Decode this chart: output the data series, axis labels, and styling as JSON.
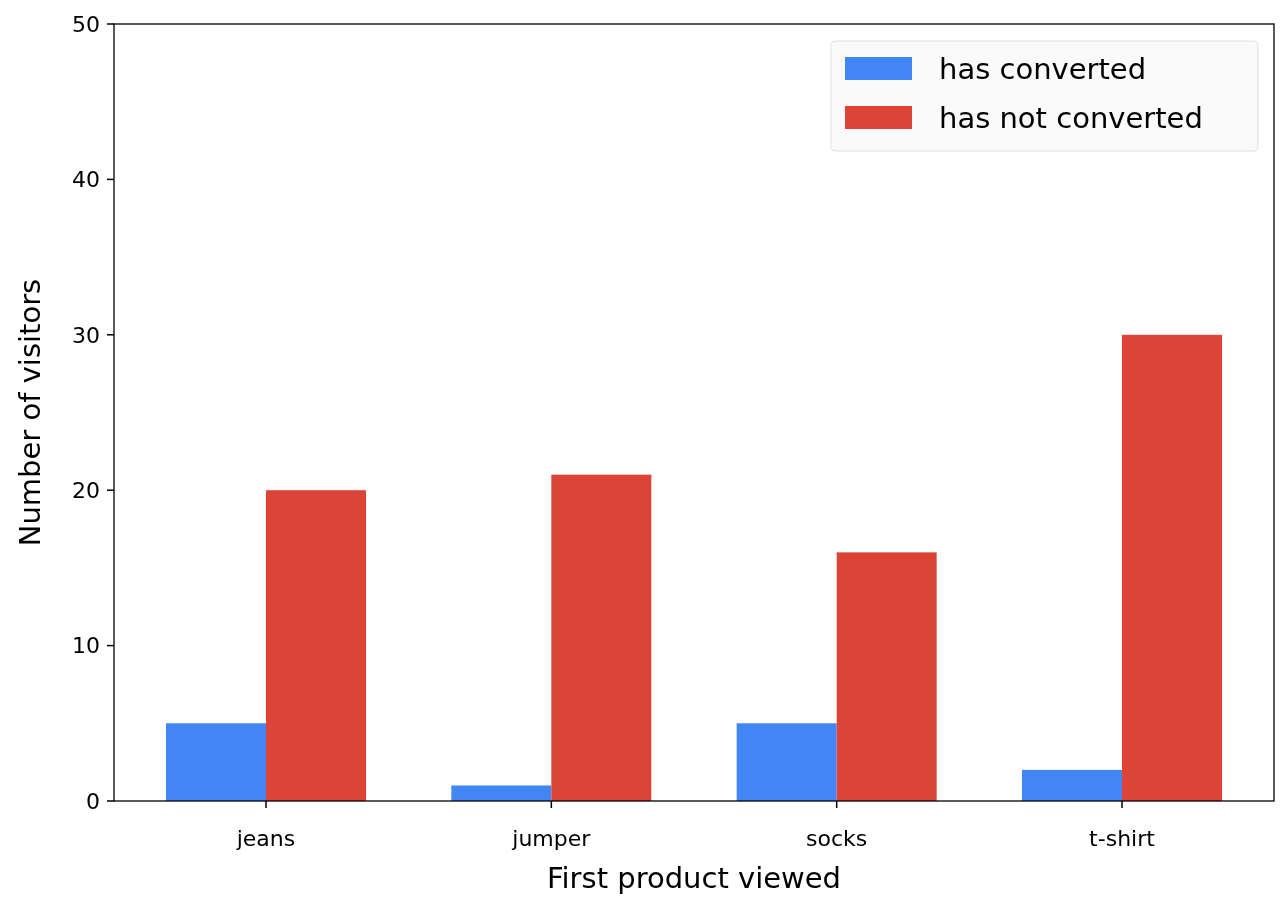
{
  "chart_data": {
    "type": "bar",
    "xlabel": "First product viewed",
    "ylabel": "Number of visitors",
    "categories": [
      "jeans",
      "jumper",
      "socks",
      "t-shirt"
    ],
    "series": [
      {
        "name": "has converted",
        "color": "#4285f4",
        "values": [
          5,
          1,
          5,
          2
        ]
      },
      {
        "name": "has not converted",
        "color": "#db4437",
        "values": [
          20,
          21,
          16,
          30
        ]
      }
    ],
    "ylim": [
      0,
      50
    ],
    "yticks": [
      0,
      10,
      20,
      30,
      40,
      50
    ],
    "legend": "top right"
  }
}
